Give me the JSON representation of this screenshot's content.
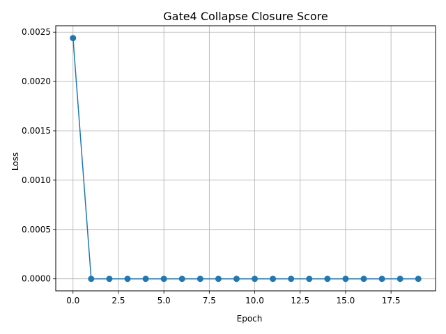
{
  "chart_data": {
    "type": "line",
    "title": "Gate4 Collapse Closure Score",
    "xlabel": "Epoch",
    "ylabel": "Loss",
    "xlim": [
      -0.95,
      19.95
    ],
    "ylim": [
      -0.000122,
      0.002565
    ],
    "grid": true,
    "x_ticks": [
      0.0,
      2.5,
      5.0,
      7.5,
      10.0,
      12.5,
      15.0,
      17.5
    ],
    "x_tick_labels": [
      "0.0",
      "2.5",
      "5.0",
      "7.5",
      "10.0",
      "12.5",
      "15.0",
      "17.5"
    ],
    "y_ticks": [
      0.0,
      0.0005,
      0.001,
      0.0015,
      0.002,
      0.0025
    ],
    "y_tick_labels": [
      "0.0000",
      "0.0005",
      "0.0010",
      "0.0015",
      "0.0020",
      "0.0025"
    ],
    "series": [
      {
        "color": "#1f77b4",
        "marker": "circle",
        "x": [
          0,
          1,
          2,
          3,
          4,
          5,
          6,
          7,
          8,
          9,
          10,
          11,
          12,
          13,
          14,
          15,
          16,
          17,
          18,
          19
        ],
        "y": [
          0.00244,
          0,
          0,
          0,
          0,
          0,
          0,
          0,
          0,
          0,
          0,
          0,
          0,
          0,
          0,
          0,
          0,
          0,
          0,
          0
        ]
      }
    ]
  }
}
